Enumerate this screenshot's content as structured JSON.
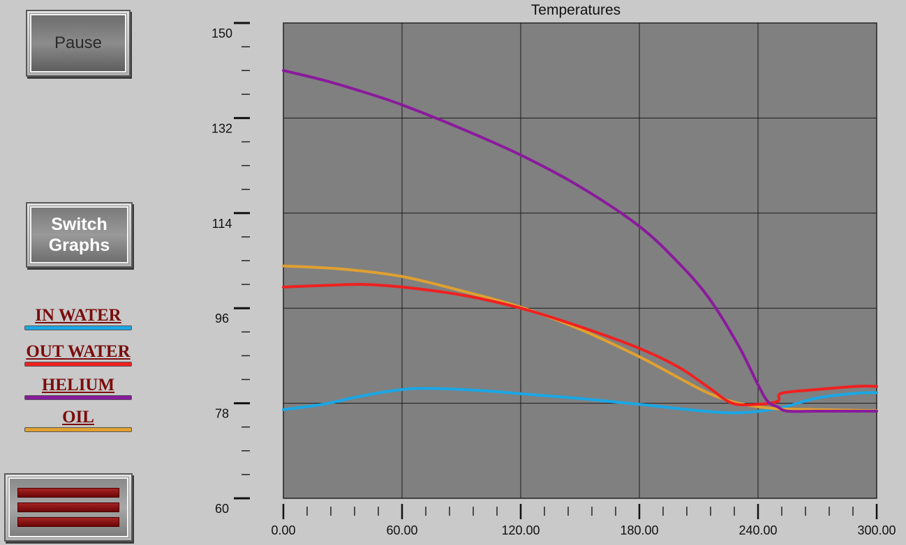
{
  "buttons": {
    "pause": "Pause",
    "switch_line1": "Switch",
    "switch_line2": "Graphs"
  },
  "legend": [
    {
      "label": "IN WATER",
      "color": "#1aa7e6"
    },
    {
      "label": "OUT WATER",
      "color": "#f02020"
    },
    {
      "label": "HELIUM",
      "color": "#8a1a9c"
    },
    {
      "label": "OIL",
      "color": "#e0a030"
    }
  ],
  "chart_data": {
    "type": "line",
    "title": "Temperatures",
    "xlabel": "",
    "ylabel": "",
    "xlim": [
      0,
      300
    ],
    "ylim": [
      60,
      150
    ],
    "x_ticks": [
      "0.00",
      "60.00",
      "120.00",
      "180.00",
      "240.00",
      "300.00"
    ],
    "y_ticks": [
      "60",
      "78",
      "96",
      "114",
      "132",
      "150"
    ],
    "grid": true,
    "series": [
      {
        "name": "IN WATER",
        "color": "#1aa7e6",
        "points": [
          [
            0,
            76.8
          ],
          [
            20,
            77.8
          ],
          [
            40,
            79.4
          ],
          [
            60,
            80.6
          ],
          [
            75,
            80.8
          ],
          [
            100,
            80.4
          ],
          [
            120,
            79.8
          ],
          [
            150,
            78.9
          ],
          [
            180,
            77.8
          ],
          [
            210,
            76.6
          ],
          [
            230,
            76.2
          ],
          [
            250,
            77.0
          ],
          [
            270,
            79.0
          ],
          [
            290,
            79.9
          ],
          [
            300,
            80.0
          ]
        ]
      },
      {
        "name": "OUT WATER",
        "color": "#f02020",
        "points": [
          [
            0,
            100.0
          ],
          [
            20,
            100.3
          ],
          [
            40,
            100.5
          ],
          [
            60,
            100.0
          ],
          [
            90,
            98.5
          ],
          [
            120,
            96.0
          ],
          [
            150,
            92.5
          ],
          [
            180,
            88.4
          ],
          [
            200,
            84.8
          ],
          [
            215,
            81.0
          ],
          [
            227,
            78.0
          ],
          [
            240,
            77.8
          ],
          [
            250,
            78.4
          ],
          [
            252,
            79.9
          ],
          [
            270,
            80.6
          ],
          [
            290,
            81.2
          ],
          [
            300,
            81.2
          ]
        ]
      },
      {
        "name": "HELIUM",
        "color": "#8a1a9c",
        "points": [
          [
            0,
            141.0
          ],
          [
            20,
            139.2
          ],
          [
            40,
            137.0
          ],
          [
            60,
            134.5
          ],
          [
            90,
            130.0
          ],
          [
            120,
            125.0
          ],
          [
            150,
            119.0
          ],
          [
            180,
            111.5
          ],
          [
            200,
            104.5
          ],
          [
            215,
            98.0
          ],
          [
            230,
            89.0
          ],
          [
            240,
            81.5
          ],
          [
            245,
            78.3
          ],
          [
            250,
            77.3
          ],
          [
            255,
            76.5
          ],
          [
            270,
            76.5
          ],
          [
            300,
            76.5
          ]
        ]
      },
      {
        "name": "OIL",
        "color": "#e0a030",
        "points": [
          [
            0,
            104.0
          ],
          [
            30,
            103.4
          ],
          [
            60,
            102.0
          ],
          [
            90,
            99.3
          ],
          [
            120,
            96.2
          ],
          [
            150,
            92.0
          ],
          [
            180,
            86.8
          ],
          [
            200,
            82.8
          ],
          [
            215,
            79.9
          ],
          [
            230,
            78.0
          ],
          [
            248,
            77.0
          ],
          [
            270,
            76.8
          ],
          [
            300,
            76.6
          ]
        ]
      }
    ]
  }
}
